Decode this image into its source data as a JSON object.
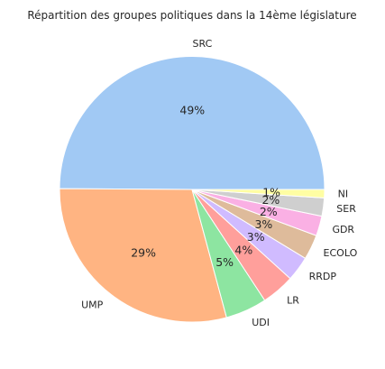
{
  "chart_data": {
    "type": "pie",
    "title": "Répartition des groupes politiques dans la 14ème législature",
    "start_angle_deg": 0,
    "direction": "counterclockwise",
    "legend": "none",
    "slices": [
      {
        "label": "SRC",
        "value": 49.4,
        "pct_label": "49%",
        "color": "#a1c9f4"
      },
      {
        "label": "UMP",
        "value": 29.0,
        "pct_label": "29%",
        "color": "#ffb482"
      },
      {
        "label": "UDI",
        "value": 5.0,
        "pct_label": "5%",
        "color": "#8de5a1"
      },
      {
        "label": "LR",
        "value": 4.0,
        "pct_label": "4%",
        "color": "#ff9f9b"
      },
      {
        "label": "RRDP",
        "value": 3.0,
        "pct_label": "3%",
        "color": "#d0bbff"
      },
      {
        "label": "ECOLO",
        "value": 3.0,
        "pct_label": "3%",
        "color": "#debb9b"
      },
      {
        "label": "GDR",
        "value": 2.4,
        "pct_label": "2%",
        "color": "#fab0e4"
      },
      {
        "label": "SER",
        "value": 2.2,
        "pct_label": "2%",
        "color": "#cfcfcf"
      },
      {
        "label": "NI",
        "value": 1.0,
        "pct_label": "1%",
        "color": "#fffea3"
      }
    ]
  }
}
